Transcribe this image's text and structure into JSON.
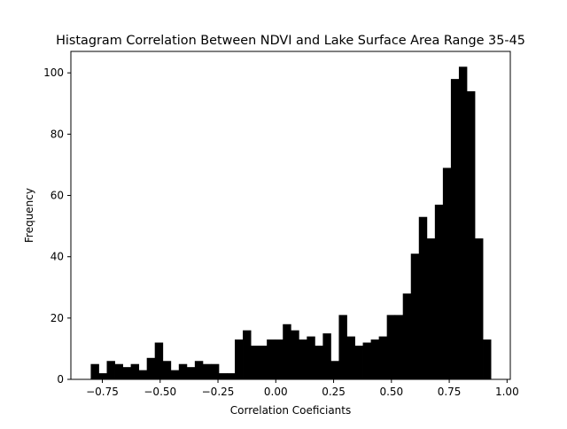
{
  "chart_data": {
    "type": "bar",
    "title": "Histagram Correlation Between NDVI and Lake Surface Area Range 35-45",
    "xlabel": "Correlation Coeficiants",
    "ylabel": "Frequency",
    "bar_color": "#000000",
    "xlim": [
      -0.886,
      1.014
    ],
    "ylim": [
      0,
      107
    ],
    "x_ticks": [
      {
        "value": -0.75,
        "label": "−0.75"
      },
      {
        "value": -0.5,
        "label": "−0.50"
      },
      {
        "value": -0.25,
        "label": "−0.25"
      },
      {
        "value": 0.0,
        "label": "0.00"
      },
      {
        "value": 0.25,
        "label": "0.25"
      },
      {
        "value": 0.5,
        "label": "0.50"
      },
      {
        "value": 0.75,
        "label": "0.75"
      },
      {
        "value": 1.0,
        "label": "1.00"
      }
    ],
    "y_ticks": [
      {
        "value": 0,
        "label": "0"
      },
      {
        "value": 20,
        "label": "20"
      },
      {
        "value": 40,
        "label": "40"
      },
      {
        "value": 60,
        "label": "60"
      },
      {
        "value": 80,
        "label": "80"
      },
      {
        "value": 100,
        "label": "100"
      }
    ],
    "grid": false,
    "bin_edges": [
      -0.8,
      -0.7654,
      -0.7308,
      -0.6962,
      -0.6616,
      -0.627,
      -0.5924,
      -0.5578,
      -0.5232,
      -0.4886,
      -0.454,
      -0.4194,
      -0.3848,
      -0.3502,
      -0.3156,
      -0.281,
      -0.2464,
      -0.2118,
      -0.1772,
      -0.1426,
      -0.108,
      -0.0734,
      -0.0388,
      -0.0042,
      0.0304,
      0.065,
      0.0996,
      0.1342,
      0.1688,
      0.2034,
      0.238,
      0.2726,
      0.3072,
      0.3418,
      0.3764,
      0.411,
      0.4456,
      0.4802,
      0.5148,
      0.5494,
      0.584,
      0.6186,
      0.6532,
      0.6878,
      0.7224,
      0.757,
      0.7916,
      0.8262,
      0.8608,
      0.8954,
      0.93
    ],
    "counts": [
      5,
      2,
      6,
      5,
      4,
      5,
      3,
      7,
      12,
      6,
      3,
      5,
      4,
      6,
      5,
      5,
      2,
      2,
      13,
      16,
      11,
      11,
      13,
      13,
      18,
      16,
      13,
      14,
      11,
      15,
      6,
      21,
      14,
      11,
      12,
      13,
      14,
      21,
      21,
      28,
      41,
      53,
      46,
      57,
      69,
      98,
      102,
      94,
      46,
      13
    ]
  }
}
